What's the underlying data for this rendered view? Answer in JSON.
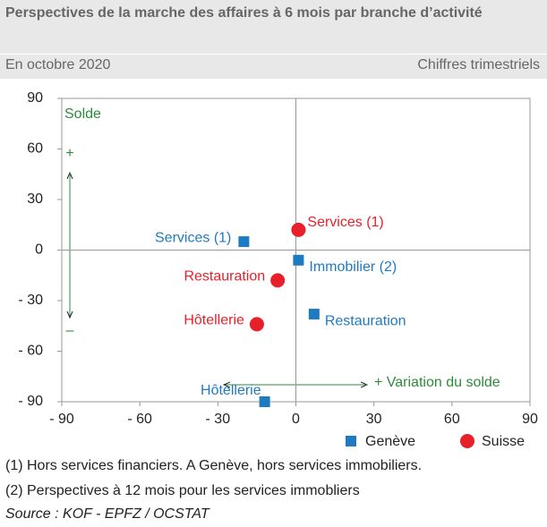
{
  "header": {
    "title": "Perspectives de la marche des affaires à 6 mois par branche d’activité",
    "subtitle": "En octobre 2020",
    "note": "Chiffres trimestriels"
  },
  "chart_data": {
    "type": "scatter",
    "y_axis_label": "Solde",
    "y_plus": "+",
    "y_minus": "–",
    "x_axis_label": "+ Variation du solde",
    "xlim": [
      -90,
      90
    ],
    "ylim": [
      -90,
      90
    ],
    "xticks": [
      {
        "value": -90,
        "label": "- 90"
      },
      {
        "value": -60,
        "label": "- 60"
      },
      {
        "value": -30,
        "label": "- 30"
      },
      0,
      30,
      60,
      90
    ],
    "yticks": [
      90,
      60,
      30,
      0,
      {
        "value": -30,
        "label": "- 30"
      },
      {
        "value": -60,
        "label": "- 60"
      },
      {
        "value": -90,
        "label": "- 90"
      }
    ],
    "series": [
      {
        "name": "Genève",
        "color": "#1f7bc1",
        "marker": "square",
        "labels": [
          "Services (1)",
          "Immobilier (2)",
          "Restauration",
          "Hôtellerie"
        ],
        "x": [
          -20,
          1,
          7,
          -12
        ],
        "values": [
          5,
          -6,
          -38,
          -90
        ]
      },
      {
        "name": "Suisse",
        "color": "#e8202a",
        "marker": "circle",
        "labels": [
          "Services (1)",
          "Restauration",
          "Hôtellerie"
        ],
        "x": [
          1,
          -7,
          -15
        ],
        "values": [
          12,
          -18,
          -44
        ]
      }
    ]
  },
  "footnotes": [
    "(1) Hors services financiers. A Genève, hors services immobiliers.",
    "(2) Perspectives à 12 mois pour les services immobliers"
  ],
  "source": "Source : KOF - EPFZ / OCSTAT"
}
